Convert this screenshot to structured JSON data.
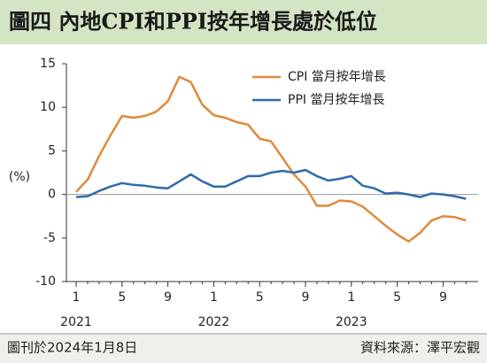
{
  "chart_data": {
    "type": "line",
    "title": "圖四 內地CPI和PPI按年增長處於低位",
    "y_label": "(%)",
    "categories": [
      "1",
      null,
      null,
      null,
      "5",
      null,
      null,
      null,
      "9",
      null,
      null,
      null,
      "1",
      null,
      null,
      null,
      "5",
      null,
      null,
      null,
      "9",
      null,
      null,
      null,
      "1",
      null,
      null,
      null,
      "5",
      null,
      null,
      null,
      "9",
      null,
      null
    ],
    "year_labels": [
      "2021",
      "2022",
      "2023"
    ],
    "series": [
      {
        "name": "CPI 當月按年增長",
        "color": "#e0893a",
        "values": [
          0.3,
          1.7,
          4.4,
          6.8,
          9.0,
          8.8,
          9.0,
          9.5,
          10.7,
          13.5,
          12.9,
          10.3,
          9.1,
          8.8,
          8.3,
          8.0,
          6.4,
          6.1,
          4.2,
          2.3,
          0.9,
          -1.3,
          -1.3,
          -0.7,
          -0.8,
          -1.4,
          -2.5,
          -3.6,
          -4.6,
          -5.4,
          -4.4,
          -3.0,
          -2.5,
          -2.6,
          -3.0
        ]
      },
      {
        "name": "PPI 當月按年增長",
        "color": "#2f6ca8",
        "values": [
          -0.3,
          -0.2,
          0.4,
          0.9,
          1.3,
          1.1,
          1.0,
          0.8,
          0.7,
          1.5,
          2.3,
          1.5,
          0.9,
          0.9,
          1.5,
          2.1,
          2.1,
          2.5,
          2.7,
          2.5,
          2.8,
          2.1,
          1.6,
          1.8,
          2.1,
          1.0,
          0.7,
          0.1,
          0.2,
          0.0,
          -0.3,
          0.1,
          0.0,
          -0.2,
          -0.5
        ]
      }
    ],
    "ylim": [
      -10,
      15
    ],
    "yticks": [
      -10,
      -5,
      0,
      5,
      10,
      15
    ],
    "legend": "upper right",
    "grid": false
  },
  "footer": {
    "note": "圖刊於2024年1月8日",
    "source": "資料來源：澤平宏觀"
  }
}
